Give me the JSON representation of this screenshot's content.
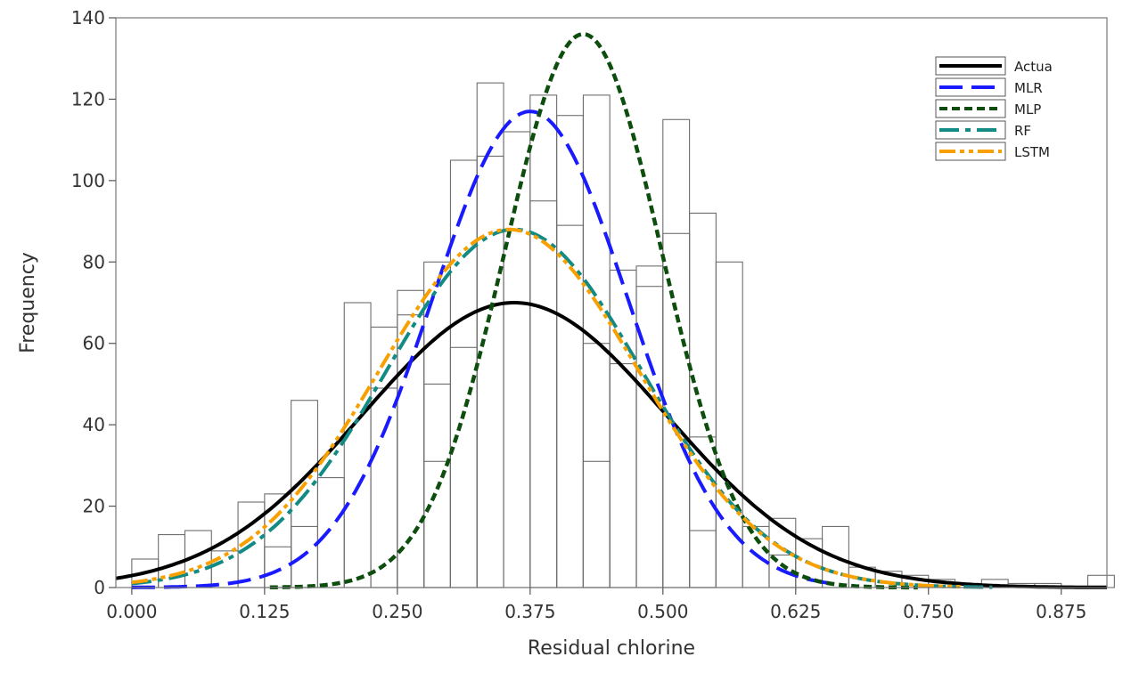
{
  "chart_data": {
    "type": "histogram",
    "title": "",
    "xlabel": "Residual chlorine",
    "ylabel": "Frequency",
    "xlim": [
      -0.015,
      0.918
    ],
    "ylim": [
      0,
      140
    ],
    "xticks": [
      "0.000",
      "0.125",
      "0.250",
      "0.375",
      "0.500",
      "0.625",
      "0.750",
      "0.875"
    ],
    "xtick_values": [
      0,
      0.125,
      0.25,
      0.375,
      0.5,
      0.625,
      0.75,
      0.875
    ],
    "yticks": [
      0,
      20,
      40,
      60,
      80,
      100,
      120,
      140
    ],
    "grid": false,
    "legend_position": "top-right",
    "bin_width": 0.025,
    "histogram_bins": [
      {
        "x_start": 0.0,
        "outline_heights": [
          7
        ]
      },
      {
        "x_start": 0.025,
        "outline_heights": [
          13
        ]
      },
      {
        "x_start": 0.05,
        "outline_heights": [
          14
        ]
      },
      {
        "x_start": 0.075,
        "outline_heights": [
          9
        ]
      },
      {
        "x_start": 0.1,
        "outline_heights": [
          21
        ]
      },
      {
        "x_start": 0.125,
        "outline_heights": [
          23,
          10
        ]
      },
      {
        "x_start": 0.15,
        "outline_heights": [
          46,
          15
        ]
      },
      {
        "x_start": 0.175,
        "outline_heights": [
          27
        ]
      },
      {
        "x_start": 0.2,
        "outline_heights": [
          70
        ]
      },
      {
        "x_start": 0.225,
        "outline_heights": [
          64,
          49
        ]
      },
      {
        "x_start": 0.25,
        "outline_heights": [
          73,
          67
        ]
      },
      {
        "x_start": 0.275,
        "outline_heights": [
          80,
          50,
          31
        ]
      },
      {
        "x_start": 0.3,
        "outline_heights": [
          105,
          59
        ]
      },
      {
        "x_start": 0.325,
        "outline_heights": [
          124,
          106
        ]
      },
      {
        "x_start": 0.35,
        "outline_heights": [
          112
        ]
      },
      {
        "x_start": 0.375,
        "outline_heights": [
          121,
          95
        ]
      },
      {
        "x_start": 0.4,
        "outline_heights": [
          116,
          89
        ]
      },
      {
        "x_start": 0.425,
        "outline_heights": [
          121,
          60,
          31
        ]
      },
      {
        "x_start": 0.45,
        "outline_heights": [
          78,
          55
        ]
      },
      {
        "x_start": 0.475,
        "outline_heights": [
          79,
          74
        ]
      },
      {
        "x_start": 0.5,
        "outline_heights": [
          115,
          87
        ]
      },
      {
        "x_start": 0.525,
        "outline_heights": [
          92,
          37,
          14
        ]
      },
      {
        "x_start": 0.55,
        "outline_heights": [
          80
        ]
      },
      {
        "x_start": 0.575,
        "outline_heights": [
          15
        ]
      },
      {
        "x_start": 0.6,
        "outline_heights": [
          17,
          8
        ]
      },
      {
        "x_start": 0.625,
        "outline_heights": [
          12
        ]
      },
      {
        "x_start": 0.65,
        "outline_heights": [
          15
        ]
      },
      {
        "x_start": 0.675,
        "outline_heights": [
          5
        ]
      },
      {
        "x_start": 0.7,
        "outline_heights": [
          4
        ]
      },
      {
        "x_start": 0.725,
        "outline_heights": [
          3
        ]
      },
      {
        "x_start": 0.75,
        "outline_heights": [
          2
        ]
      },
      {
        "x_start": 0.775,
        "outline_heights": [
          1
        ]
      },
      {
        "x_start": 0.8,
        "outline_heights": [
          2
        ]
      },
      {
        "x_start": 0.825,
        "outline_heights": [
          1
        ]
      },
      {
        "x_start": 0.85,
        "outline_heights": [
          1
        ]
      },
      {
        "x_start": 0.875,
        "outline_heights": [
          0
        ]
      },
      {
        "x_start": 0.9,
        "outline_heights": [
          3
        ]
      }
    ],
    "series": [
      {
        "name": "Actua",
        "color": "#000000",
        "dash": "solid",
        "mean": 0.36,
        "sd": 0.143,
        "peak": 70,
        "x_range": [
          -0.015,
          0.918
        ]
      },
      {
        "name": "MLR",
        "color": "#1a1aff",
        "dash": "dashed",
        "mean": 0.375,
        "sd": 0.092,
        "peak": 117,
        "x_range": [
          0.0,
          0.66
        ]
      },
      {
        "name": "MLP",
        "color": "#0d4d0d",
        "dash": "dotted",
        "mean": 0.425,
        "sd": 0.074,
        "peak": 136,
        "x_range": [
          0.13,
          0.74
        ]
      },
      {
        "name": "RF",
        "color": "#138a84",
        "dash": "dashdot",
        "mean": 0.36,
        "sd": 0.12,
        "peak": 88,
        "x_range": [
          0.0,
          0.81
        ]
      },
      {
        "name": "LSTM",
        "color": "#f7a000",
        "dash": "dashdotdot",
        "mean": 0.355,
        "sd": 0.122,
        "peak": 88,
        "x_range": [
          0.0,
          0.78
        ]
      }
    ]
  }
}
